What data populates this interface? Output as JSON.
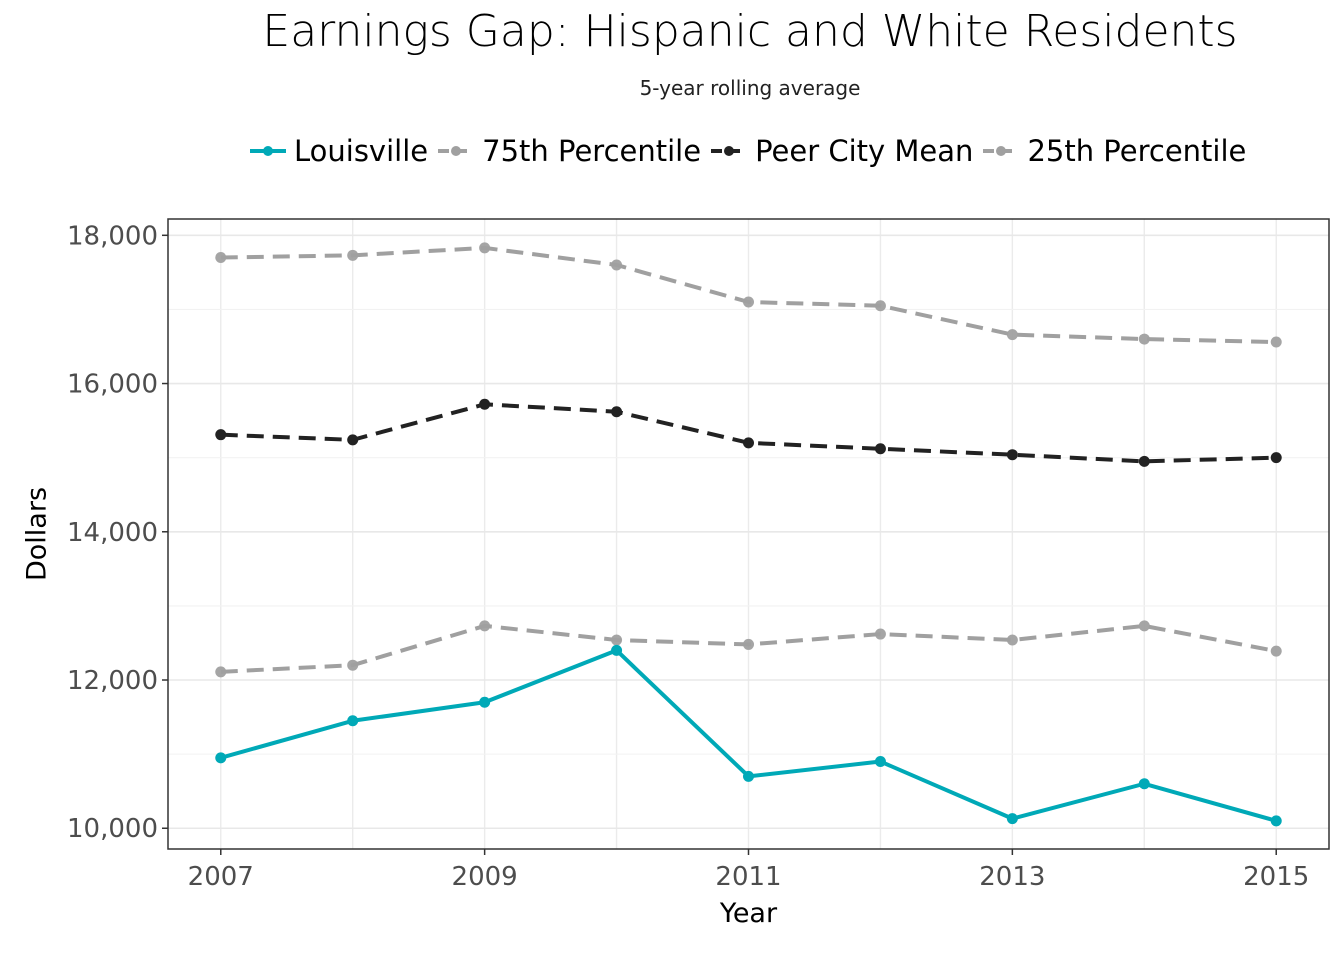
{
  "chart_data": {
    "type": "line",
    "title": "Earnings Gap: Hispanic and White Residents",
    "subtitle": "5-year rolling average",
    "xlabel": "Year",
    "ylabel": "Dollars",
    "x": [
      2007,
      2008,
      2009,
      2010,
      2011,
      2012,
      2013,
      2014,
      2015
    ],
    "x_ticks": [
      2007,
      2009,
      2011,
      2013,
      2015
    ],
    "x_tick_labels": [
      "2007",
      "2009",
      "2011",
      "2013",
      "2015"
    ],
    "xlim": [
      2006.6,
      2015.4
    ],
    "y_ticks": [
      10000,
      12000,
      14000,
      16000,
      18000
    ],
    "y_tick_labels": [
      "10,000",
      "12,000",
      "14,000",
      "16,000",
      "18,000"
    ],
    "ylim": [
      9720,
      18220
    ],
    "grid": true,
    "legend_position": "top",
    "series": [
      {
        "name": "Louisville",
        "color": "#00A9B7",
        "style": "solid",
        "values": [
          10950,
          11450,
          11700,
          12400,
          10700,
          10900,
          10130,
          10600,
          10100
        ]
      },
      {
        "name": "75th Percentile",
        "color": "#A0A0A0",
        "style": "dashed",
        "values": [
          17700,
          17730,
          17830,
          17600,
          17100,
          17050,
          16660,
          16600,
          16560
        ]
      },
      {
        "name": "Peer City Mean",
        "color": "#222222",
        "style": "dashed",
        "values": [
          15310,
          15240,
          15720,
          15620,
          15200,
          15120,
          15040,
          14950,
          15000
        ]
      },
      {
        "name": "25th Percentile",
        "color": "#A0A0A0",
        "style": "dashed",
        "values": [
          12110,
          12200,
          12730,
          12540,
          12480,
          12620,
          12540,
          12730,
          12390
        ]
      }
    ]
  }
}
